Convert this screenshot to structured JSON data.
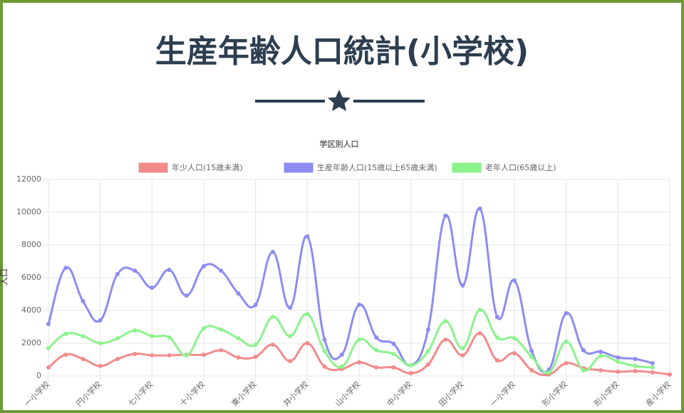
{
  "header": {
    "title": "生産年齢人口統計(小学校)"
  },
  "chart_data": {
    "type": "line",
    "title": "学区別人口",
    "y_label": "人口",
    "categories": [
      "一小学校",
      null,
      null,
      "円小学校",
      null,
      null,
      "七小学校",
      null,
      null,
      "十小学校",
      null,
      null,
      "東小学校",
      null,
      null,
      "井小学校",
      null,
      null,
      "山小学校",
      null,
      null,
      "中小学校",
      null,
      null,
      "田小学校",
      null,
      null,
      "一小学校",
      null,
      null,
      "形小学校",
      null,
      null,
      "形小学校",
      null,
      null,
      "産小学校"
    ],
    "series": [
      {
        "name": "年少人口(15歳未満)",
        "color": "#f38b8b",
        "values": [
          520,
          1300,
          1040,
          610,
          1040,
          1350,
          1260,
          1260,
          1300,
          1300,
          1570,
          1130,
          1170,
          1910,
          910,
          2000,
          570,
          430,
          830,
          520,
          520,
          170,
          700,
          2220,
          1260,
          2610,
          960,
          1390,
          350,
          90,
          780,
          480,
          350,
          260,
          300,
          220,
          90
        ]
      },
      {
        "name": "生産年齢人口(15歳以上65歳未満)",
        "color": "#8c8cf3",
        "values": [
          3170,
          6600,
          4570,
          3390,
          6220,
          6430,
          5390,
          6480,
          4910,
          6700,
          6430,
          5040,
          4350,
          7570,
          4170,
          8520,
          2220,
          1300,
          4350,
          2350,
          1960,
          650,
          2830,
          9780,
          5520,
          10220,
          3610,
          5830,
          1520,
          390,
          3830,
          1570,
          1480,
          1130,
          1040,
          780,
          null
        ]
      },
      {
        "name": "老年人口(65歳以上)",
        "color": "#8cf38c",
        "values": [
          1700,
          2570,
          2430,
          2000,
          2300,
          2780,
          2430,
          2350,
          1260,
          2910,
          2830,
          2300,
          1910,
          3610,
          2430,
          3780,
          1520,
          570,
          2220,
          1570,
          1350,
          650,
          1520,
          3350,
          1700,
          4040,
          2350,
          2300,
          1170,
          220,
          2090,
          350,
          1220,
          870,
          610,
          520,
          null
        ]
      }
    ],
    "ylim": [
      0,
      12000
    ],
    "yticks": [
      0,
      2000,
      4000,
      6000,
      8000,
      10000,
      12000
    ],
    "grid": true,
    "legend": "top"
  }
}
